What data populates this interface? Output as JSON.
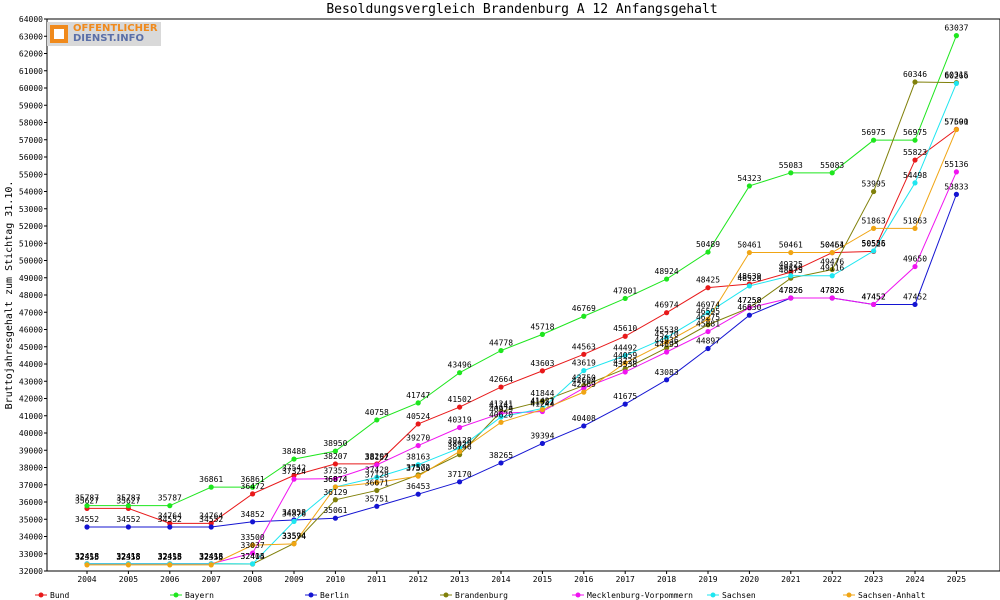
{
  "chart_data": {
    "type": "line",
    "title": "Besoldungsvergleich Brandenburg A 12 Anfangsgehalt",
    "ylabel": "Bruttojahresgehalt zum Stichtag 31.10.",
    "xlabel": "",
    "ylim": [
      32000,
      64000
    ],
    "ytick_step": 1000,
    "grid": false,
    "legend_position": "bottom",
    "categories": [
      "2004",
      "2005",
      "2006",
      "2007",
      "2008",
      "2009",
      "2010",
      "2011",
      "2012",
      "2013",
      "2014",
      "2015",
      "2016",
      "2017",
      "2018",
      "2019",
      "2020",
      "2021",
      "2022",
      "2023",
      "2024",
      "2025"
    ],
    "series": [
      {
        "name": "Bund",
        "color": "#e8191a",
        "values": [
          35627,
          35627,
          34764,
          34764,
          36472,
          37542,
          38207,
          38207,
          40524,
          41502,
          42664,
          43603,
          44563,
          45610,
          46974,
          48425,
          48639,
          49325,
          50454,
          50526,
          55823,
          57601
        ]
      },
      {
        "name": "Bayern",
        "color": "#1ee61e",
        "values": [
          35787,
          35787,
          35787,
          36861,
          36861,
          38488,
          38950,
          40758,
          41747,
          43496,
          44778,
          45718,
          46769,
          47801,
          48924,
          50489,
          54323,
          55083,
          55083,
          56975,
          56975,
          63037
        ]
      },
      {
        "name": "Berlin",
        "color": "#1414d2",
        "values": [
          34552,
          34552,
          34552,
          34552,
          34852,
          34958,
          35061,
          35751,
          36453,
          37170,
          38265,
          39394,
          40408,
          41675,
          43083,
          44897,
          46830,
          47826,
          47826,
          47452,
          47452,
          53833
        ]
      },
      {
        "name": "Brandenburg",
        "color": "#80800a",
        "values": [
          32418,
          32418,
          32418,
          32418,
          32405,
          33594,
          36129,
          36671,
          37572,
          38746,
          41241,
          41844,
          42750,
          43720,
          44936,
          46275,
          47258,
          48975,
          49476,
          53995,
          60346,
          60315
        ]
      },
      {
        "name": "Mecklenburg-Vorpommern",
        "color": "#f014f0",
        "values": [
          32418,
          32418,
          32418,
          32418,
          33037,
          37324,
          37353,
          38152,
          39270,
          40319,
          41141,
          41244,
          42604,
          43538,
          44695,
          45881,
          47258,
          47826,
          47826,
          47452,
          49650,
          55136
        ]
      },
      {
        "name": "Sachsen",
        "color": "#1ee6f0",
        "values": [
          32418,
          32418,
          32418,
          32418,
          32414,
          34876,
          36874,
          37428,
          38163,
          39128,
          40929,
          41421,
          43619,
          44492,
          45538,
          46974,
          48526,
          49116,
          49116,
          50555,
          54498,
          60266
        ]
      },
      {
        "name": "Sachsen-Anhalt",
        "color": "#f0a514",
        "values": [
          32355,
          32355,
          32355,
          32355,
          33500,
          33574,
          36874,
          37128,
          37500,
          38929,
          40620,
          41357,
          42369,
          44059,
          45270,
          46595,
          50461,
          50461,
          50461,
          51863,
          51863,
          57590
        ]
      }
    ]
  },
  "watermark": {
    "line1": "OFFENTLICHER",
    "line2": "DIENST.INFO"
  }
}
